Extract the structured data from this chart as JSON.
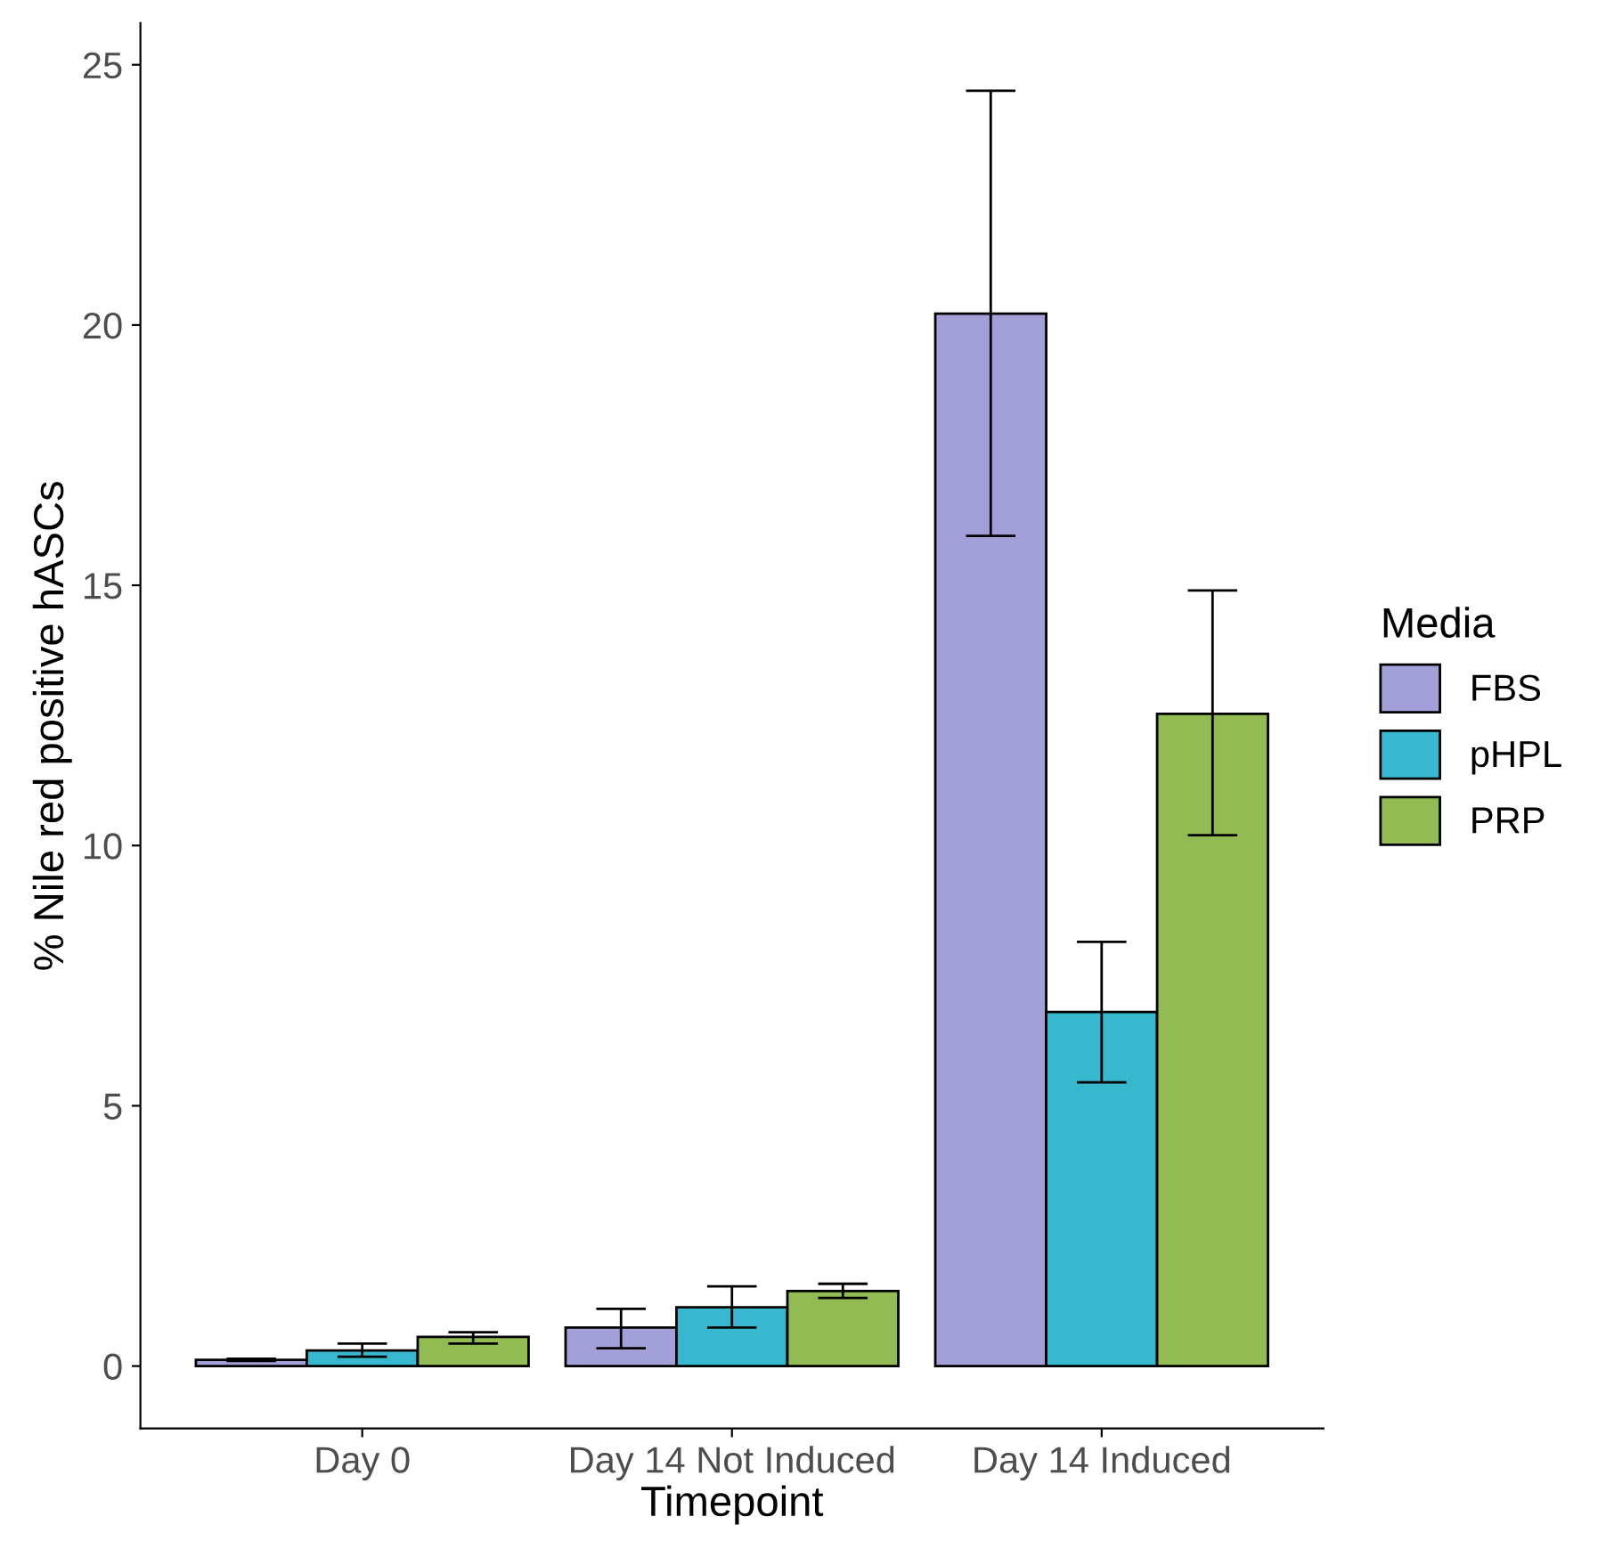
{
  "chart_data": {
    "type": "bar",
    "xlabel": "Timepoint",
    "ylabel": "% Nile red positive hASCs",
    "legend_title": "Media",
    "legend": "right",
    "categories": [
      "Day 0",
      "Day 14 Not Induced",
      "Day 14 Induced"
    ],
    "series": [
      {
        "name": "FBS",
        "color": "#a3a0d9",
        "values": [
          0.12,
          0.74,
          20.22
        ],
        "errors": [
          0.02,
          [
            0.34,
            1.1
          ],
          [
            15.95,
            24.5
          ]
        ]
      },
      {
        "name": "pHPL",
        "color": "#38b8cf",
        "values": [
          0.3,
          1.13,
          6.8
        ],
        "errors": [
          [
            0.18,
            0.43
          ],
          [
            0.74,
            1.53
          ],
          [
            5.45,
            8.15
          ]
        ]
      },
      {
        "name": "PRP",
        "color": "#92bb53",
        "values": [
          0.56,
          1.44,
          12.53
        ],
        "errors": [
          [
            0.43,
            0.65
          ],
          [
            1.31,
            1.58
          ],
          [
            10.2,
            14.9
          ]
        ]
      }
    ],
    "ylim": [
      -1.2,
      25.8
    ],
    "yticks": [
      0,
      5,
      10,
      15,
      20,
      25
    ],
    "grid": false
  }
}
